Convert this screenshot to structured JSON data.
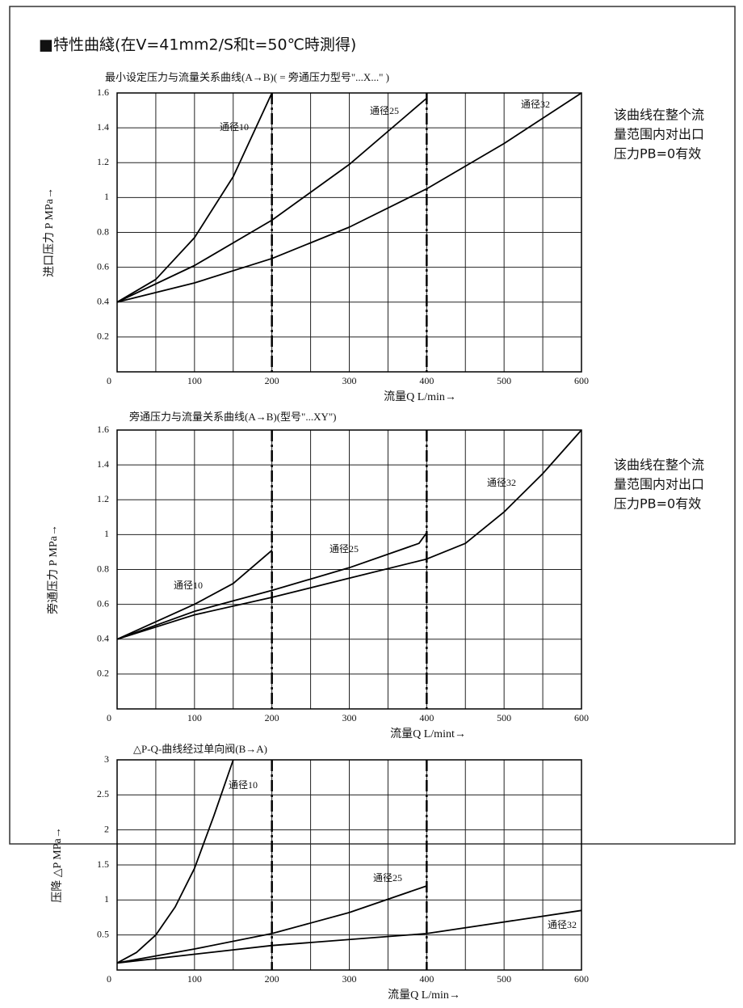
{
  "heading": "■特性曲綫(在V=41mm2/S和t=50℃時測得)",
  "chart_data": [
    {
      "type": "line",
      "title": "最小设定压力与流量关系曲线(A→B)( = 旁通压力型号\"...X...\" )",
      "y_label": "进口压力  P  MPa→",
      "x_label": "流量Q  L/min→",
      "note": [
        "该曲线在整个流",
        "量范围内对出口",
        "压力PB=0有效"
      ],
      "xlim": [
        0,
        600
      ],
      "ylim": [
        0,
        1.6
      ],
      "xticks": [
        0,
        100,
        200,
        300,
        400,
        500,
        600
      ],
      "xminor": [
        50,
        150,
        250,
        350,
        450,
        550
      ],
      "yticks": [
        0.2,
        0.4,
        0.6,
        0.8,
        1,
        1.2,
        1.4,
        1.6
      ],
      "grid": true,
      "vlines": [
        200,
        400
      ],
      "series": [
        {
          "name": "通径10",
          "color": "#000000",
          "x": [
            0,
            50,
            100,
            150,
            200
          ],
          "values": [
            0.4,
            0.53,
            0.77,
            1.12,
            1.6
          ]
        },
        {
          "name": "通径25",
          "color": "#000000",
          "x": [
            0,
            100,
            200,
            300,
            400
          ],
          "values": [
            0.4,
            0.61,
            0.87,
            1.19,
            1.57
          ]
        },
        {
          "name": "通径32",
          "color": "#000000",
          "x": [
            0,
            100,
            200,
            300,
            400,
            500,
            600
          ],
          "values": [
            0.4,
            0.51,
            0.65,
            0.83,
            1.05,
            1.31,
            1.6
          ]
        }
      ]
    },
    {
      "type": "line",
      "title": "旁通压力与流量关系曲线(A→B)(型号\"...XY\")",
      "y_label": "旁通压力  P  MPa→",
      "x_label": "流量Q  L/mint→",
      "note": [
        "该曲线在整个流",
        "量范围内对出口",
        "压力PB=0有效"
      ],
      "xlim": [
        0,
        600
      ],
      "ylim": [
        0,
        1.6
      ],
      "xticks": [
        0,
        100,
        200,
        300,
        400,
        500,
        600
      ],
      "xminor": [
        50,
        150,
        250,
        350,
        450,
        550
      ],
      "yticks": [
        0.2,
        0.4,
        0.6,
        0.8,
        1,
        1.2,
        1.4,
        1.6
      ],
      "grid": true,
      "vlines": [
        200,
        400
      ],
      "series": [
        {
          "name": "通径10",
          "color": "#000000",
          "x": [
            0,
            50,
            100,
            150,
            200
          ],
          "values": [
            0.4,
            0.5,
            0.6,
            0.72,
            0.91
          ]
        },
        {
          "name": "通径25",
          "color": "#000000",
          "x": [
            0,
            100,
            200,
            300,
            390,
            400
          ],
          "values": [
            0.4,
            0.56,
            0.68,
            0.81,
            0.95,
            1.01
          ]
        },
        {
          "name": "通径32",
          "color": "#000000",
          "x": [
            0,
            100,
            200,
            300,
            400,
            450,
            500,
            550,
            600
          ],
          "values": [
            0.4,
            0.54,
            0.64,
            0.75,
            0.86,
            0.95,
            1.13,
            1.35,
            1.6
          ]
        }
      ]
    },
    {
      "type": "line",
      "title": "△P-Q-曲线经过单向阀(B→A)",
      "y_label": "压降   △P  MPa→",
      "x_label": "流量Q  L/min→",
      "xlim": [
        0,
        600
      ],
      "ylim": [
        0,
        3
      ],
      "xticks": [
        0,
        100,
        200,
        300,
        400,
        500,
        600
      ],
      "xminor": [
        50,
        150,
        250,
        350,
        450,
        550
      ],
      "yticks": [
        0.5,
        1,
        1.5,
        2,
        2.5,
        3
      ],
      "grid": true,
      "vlines": [
        200,
        400
      ],
      "series": [
        {
          "name": "通径10",
          "color": "#000000",
          "x": [
            0,
            25,
            50,
            75,
            100,
            125,
            150
          ],
          "values": [
            0.1,
            0.25,
            0.5,
            0.9,
            1.45,
            2.2,
            3
          ]
        },
        {
          "name": "通径25",
          "color": "#000000",
          "x": [
            0,
            100,
            200,
            300,
            400
          ],
          "values": [
            0.1,
            0.3,
            0.52,
            0.82,
            1.2
          ]
        },
        {
          "name": "通径32",
          "color": "#000000",
          "x": [
            0,
            200,
            400,
            600
          ],
          "values": [
            0.1,
            0.35,
            0.52,
            0.85
          ]
        }
      ]
    }
  ]
}
